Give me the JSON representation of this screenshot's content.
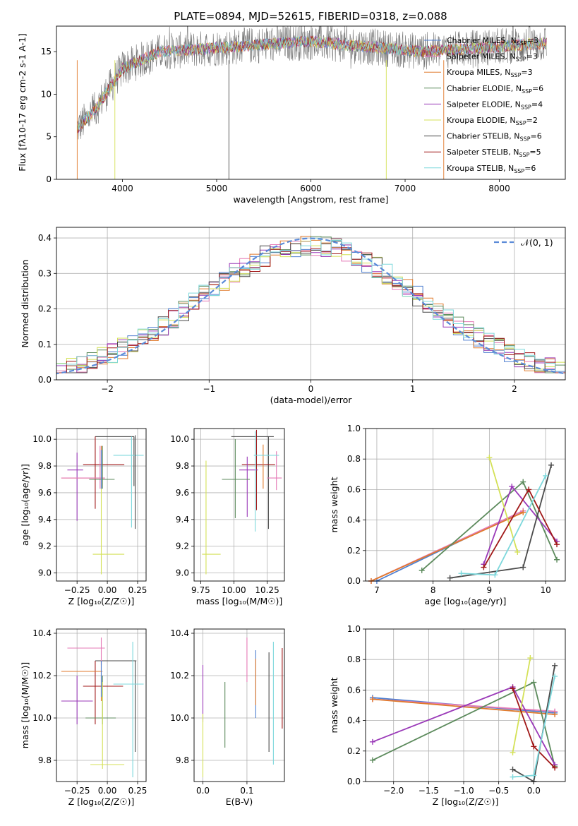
{
  "title": "PLATE=0894, MJD=52615, FIBERID=0318, z=0.088",
  "colors": {
    "grid": "#b0b0b0",
    "normal_curve": "#5b8bd8"
  },
  "series": [
    {
      "name": "Chabrier MILES, N_{SSP}=3",
      "base": "Chabrier MILES, N",
      "sub": "SSP",
      "tail": "=3",
      "color": "#4f7fd0",
      "ssp": [
        [
          7.0,
          0.0,
          -2.3,
          0.55
        ],
        [
          9.6,
          0.46,
          0.3,
          0.45
        ]
      ],
      "ebv": [
        0.12,
        10.0,
        10.32
      ]
    },
    {
      "name": "Salpeter MILES, N_{SSP}=3",
      "base": "Salpeter MILES, N",
      "sub": "SSP",
      "tail": "=3",
      "color": "#e57ab6",
      "ssp": [
        [
          6.9,
          0.0,
          -2.3,
          0.54
        ],
        [
          9.6,
          0.46,
          0.3,
          0.46
        ]
      ],
      "ebv": [
        0.1,
        10.17,
        10.38
      ]
    },
    {
      "name": "Kroupa MILES, N_{SSP}=3",
      "base": "Kroupa MILES, N",
      "sub": "SSP",
      "tail": "=3",
      "color": "#e07a2c",
      "ssp": [
        [
          6.9,
          0.0,
          -2.3,
          0.54
        ],
        [
          9.6,
          0.45,
          0.3,
          0.44
        ]
      ],
      "ebv": [
        0.12,
        10.06,
        10.28
      ]
    },
    {
      "name": "Chabrier ELODIE, N_{SSP}=6",
      "base": "Chabrier ELODIE, N",
      "sub": "SSP",
      "tail": "=6",
      "color": "#5c8a5c",
      "ssp": [
        [
          7.8,
          0.07,
          -2.3,
          0.14
        ],
        [
          9.6,
          0.65,
          0.0,
          0.65
        ],
        [
          10.2,
          0.14,
          0.3,
          0.1
        ]
      ],
      "ebv": [
        0.05,
        9.86,
        10.17
      ]
    },
    {
      "name": "Salpeter ELODIE, N_{SSP}=4",
      "base": "Salpeter ELODIE, N",
      "sub": "SSP",
      "tail": "=4",
      "color": "#9a39b8",
      "ssp": [
        [
          8.9,
          0.11,
          -2.3,
          0.26
        ],
        [
          9.4,
          0.62,
          -0.3,
          0.62
        ],
        [
          10.2,
          0.26,
          0.3,
          0.11
        ]
      ],
      "ebv": [
        0.0,
        9.98,
        10.25
      ]
    },
    {
      "name": "Kroupa ELODIE, N_{SSP}=2",
      "base": "Kroupa ELODIE, N",
      "sub": "SSP",
      "tail": "=2",
      "color": "#d4e157",
      "ssp": [
        [
          9.0,
          0.81,
          -0.05,
          0.81
        ],
        [
          9.5,
          0.19,
          -0.3,
          0.19
        ]
      ],
      "ebv": [
        0.0,
        9.72,
        10.02
      ]
    },
    {
      "name": "Chabrier STELIB, N_{SSP}=6",
      "base": "Chabrier STELIB, N",
      "sub": "SSP",
      "tail": "=6",
      "color": "#4a4a4a",
      "ssp": [
        [
          8.3,
          0.02,
          -0.3,
          0.08
        ],
        [
          9.6,
          0.09,
          0.0,
          0.0
        ],
        [
          10.1,
          0.76,
          0.3,
          0.76
        ]
      ],
      "ebv": [
        0.15,
        9.84,
        10.31
      ]
    },
    {
      "name": "Salpeter STELIB, N_{SSP}=5",
      "base": "Salpeter STELIB, N",
      "sub": "SSP",
      "tail": "=5",
      "color": "#a01818",
      "ssp": [
        [
          8.9,
          0.09,
          -0.3,
          0.61
        ],
        [
          9.7,
          0.6,
          0.0,
          0.23
        ],
        [
          10.2,
          0.24,
          0.3,
          0.09
        ]
      ],
      "ebv": [
        0.18,
        9.95,
        10.33
      ]
    },
    {
      "name": "Kroupa STELIB, N_{SSP}=6",
      "base": "Kroupa STELIB, N",
      "sub": "SSP",
      "tail": "=6",
      "color": "#7dd8dc",
      "ssp": [
        [
          8.5,
          0.05,
          -0.3,
          0.03
        ],
        [
          9.1,
          0.04,
          0.0,
          0.04
        ],
        [
          10.0,
          0.69,
          0.3,
          0.69
        ]
      ],
      "ebv": [
        0.16,
        9.78,
        10.36
      ]
    }
  ],
  "panels": {
    "spectrum": {
      "xlabel": "wavelength [Angstrom, rest frame]",
      "ylabel": "Flux [f_λ10^{-17} erg cm^{-2} s^{-1} A^{-1}]",
      "xlim": [
        3300,
        8700
      ],
      "ylim": [
        0,
        18
      ],
      "xticks": [
        "4000",
        "5000",
        "6000",
        "7000",
        "8000"
      ],
      "yticks": [
        "0",
        "5",
        "10",
        "15"
      ]
    },
    "residuals": {
      "xlabel": "(data-model)/error",
      "ylabel": "Normed distribution",
      "xlim": [
        -2.5,
        2.5
      ],
      "ylim": [
        0,
        0.43
      ],
      "xticks": [
        "−2",
        "−1",
        "0",
        "1",
        "2"
      ],
      "yticks": [
        "0.0",
        "0.1",
        "0.2",
        "0.3",
        "0.4"
      ],
      "normal_label": "𝒩(0, 1)"
    },
    "z_age": {
      "xlabel": "Z [log₁₀(Z/Z☉)]",
      "ylabel": "age  [log₁₀(age/yr)]",
      "xticks": [
        "−0.25",
        "0.00",
        "0.25"
      ],
      "yticks": [
        "9.0",
        "9.2",
        "9.4",
        "9.6",
        "9.8",
        "10.0"
      ]
    },
    "mass_age": {
      "xlabel": "mass [log₁₀(M/M☉)]",
      "xticks": [
        "9.75",
        "10.00",
        "10.25"
      ],
      "yticks": [
        "9.0",
        "9.2",
        "9.4",
        "9.6",
        "9.8",
        "10.0"
      ]
    },
    "age_weight": {
      "xlabel": "age  [log₁₀(age/yr)]",
      "ylabel": "mass weight",
      "xticks": [
        "7",
        "8",
        "9",
        "10"
      ],
      "yticks": [
        "0.0",
        "0.2",
        "0.4",
        "0.6",
        "0.8",
        "1.0"
      ]
    },
    "z_mass": {
      "xlabel": "Z [log₁₀(Z/Z☉)]",
      "ylabel": "mass [log₁₀(M/M☉)]",
      "xticks": [
        "−0.25",
        "0.00",
        "0.25"
      ],
      "yticks": [
        "9.8",
        "10.0",
        "10.2",
        "10.4"
      ]
    },
    "ebv_mass": {
      "xlabel": "E(B-V)",
      "xticks": [
        "0.0",
        "0.1"
      ],
      "yticks": [
        "9.8",
        "10.0",
        "10.2",
        "10.4"
      ]
    },
    "z_weight": {
      "xlabel": "Z [log₁₀(Z/Z☉)]",
      "ylabel": "mass weight",
      "xticks": [
        "−2.0",
        "−1.5",
        "−1.0",
        "−0.5",
        "0.0"
      ],
      "yticks": [
        "0.0",
        "0.2",
        "0.4",
        "0.6",
        "0.8",
        "1.0"
      ]
    }
  },
  "chart_data": [
    {
      "type": "line",
      "title": "PLATE=0894, MJD=52615, FIBERID=0318, z=0.088",
      "xlabel": "wavelength [Angstrom, rest frame]",
      "ylabel": "Flux",
      "xlim": [
        3300,
        8700
      ],
      "ylim": [
        0,
        18
      ],
      "grid": false,
      "legend": "right"
    },
    {
      "type": "line",
      "xlabel": "(data-model)/error",
      "ylabel": "Normed distribution",
      "xlim": [
        -2.5,
        2.5
      ],
      "ylim": [
        0,
        0.43
      ],
      "grid": true,
      "legend": "top-right"
    },
    {
      "type": "scatter",
      "xlabel": "Z [log10(Z/Zsun)]",
      "ylabel": "age [log10(age/yr)]",
      "ylim": [
        8.95,
        10.1
      ],
      "grid": true,
      "points": [
        [
          -0.3,
          9.71
        ],
        [
          -0.25,
          9.77
        ],
        [
          -0.1,
          9.81
        ],
        [
          -0.05,
          9.82
        ],
        [
          -0.05,
          9.7
        ],
        [
          -0.05,
          9.14
        ],
        [
          0.18,
          9.88
        ],
        [
          0.23,
          10.0
        ],
        [
          0.22,
          10.02
        ]
      ]
    },
    {
      "type": "scatter",
      "xlabel": "mass [log10(M/Msun)]",
      "ylim": [
        8.95,
        10.1
      ],
      "grid": true,
      "points": [
        [
          10.32,
          9.71
        ],
        [
          10.1,
          9.77
        ],
        [
          10.2,
          9.81
        ],
        [
          10.05,
          9.7
        ],
        [
          9.8,
          9.14
        ],
        [
          10.25,
          9.88
        ],
        [
          10.22,
          10.02
        ]
      ]
    },
    {
      "type": "line",
      "xlabel": "age [log10(age/yr)]",
      "ylabel": "mass weight",
      "xlim": [
        6.8,
        10.3
      ],
      "ylim": [
        0,
        1
      ],
      "grid": true
    },
    {
      "type": "scatter",
      "xlabel": "Z [log10(Z/Zsun)]",
      "ylabel": "mass [log10(M/Msun)]",
      "ylim": [
        9.7,
        10.42
      ],
      "grid": true,
      "points": [
        [
          -0.3,
          10.22
        ],
        [
          -0.25,
          10.08
        ],
        [
          -0.1,
          10.15
        ],
        [
          -0.05,
          10.33
        ],
        [
          -0.05,
          10.22
        ],
        [
          -0.05,
          9.78
        ],
        [
          0.22,
          10.27
        ],
        [
          0.18,
          10.16
        ]
      ]
    },
    {
      "type": "scatter",
      "xlabel": "E(B-V)",
      "ylim": [
        9.7,
        10.42
      ],
      "grid": false
    },
    {
      "type": "line",
      "xlabel": "Z [log10(Z/Zsun)]",
      "ylabel": "mass weight",
      "xlim": [
        -2.4,
        0.4
      ],
      "ylim": [
        0,
        1
      ],
      "grid": true
    }
  ]
}
